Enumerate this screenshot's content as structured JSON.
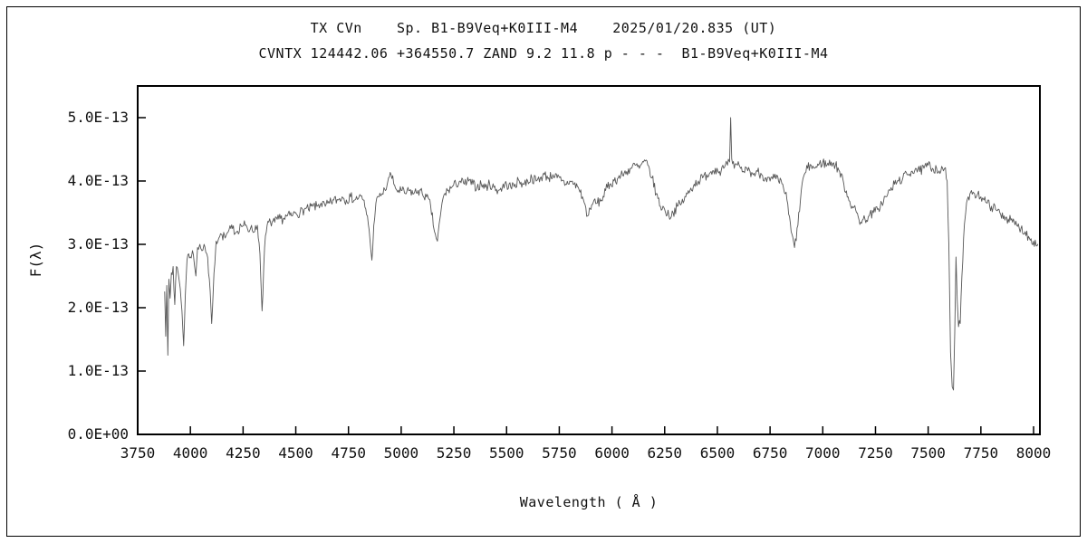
{
  "window": {
    "background": "#ffffff",
    "border_color": "#000000"
  },
  "chart_data": {
    "type": "line",
    "title": "TX CVn    Sp. B1-B9Veq+K0III-M4    2025/01/20.835 (UT)",
    "subtitle": "CVNTX 124442.06 +364550.7 ZAND 9.2 11.8 p - - -  B1-B9Veq+K0III-M4",
    "xlabel": "Wavelength ( Å )",
    "ylabel": "F(λ)",
    "xlim": [
      3750,
      8030
    ],
    "ylim_e13": [
      0,
      5.5
    ],
    "x_ticks": [
      3750,
      4000,
      4250,
      4500,
      4750,
      5000,
      5250,
      5500,
      5750,
      6000,
      6250,
      6500,
      6750,
      7000,
      7250,
      7500,
      7750,
      8000
    ],
    "y_ticks_e13": [
      0,
      1,
      2,
      3,
      4,
      5
    ],
    "y_tick_labels": [
      "0.0E+00",
      "1.0E-13",
      "2.0E-13",
      "3.0E-13",
      "4.0E-13",
      "5.0E-13"
    ],
    "line_color": "#565656",
    "axis_color": "#000000",
    "noise": {
      "amplitude_e13": 0.08,
      "step_A": 4,
      "seed": 7
    },
    "series": [
      {
        "name": "TX CVn spectrum",
        "points_e13": [
          [
            3878,
            2.25
          ],
          [
            3883,
            1.55
          ],
          [
            3888,
            2.35
          ],
          [
            3893,
            1.25
          ],
          [
            3898,
            2.45
          ],
          [
            3904,
            2.15
          ],
          [
            3910,
            2.55
          ],
          [
            3918,
            2.65
          ],
          [
            3926,
            2.05
          ],
          [
            3934,
            2.65
          ],
          [
            3942,
            2.55
          ],
          [
            3952,
            2.3
          ],
          [
            3960,
            1.95
          ],
          [
            3968,
            1.4
          ],
          [
            3976,
            2.2
          ],
          [
            3984,
            2.75
          ],
          [
            3992,
            2.85
          ],
          [
            4000,
            2.8
          ],
          [
            4010,
            2.9
          ],
          [
            4020,
            2.65
          ],
          [
            4026,
            2.5
          ],
          [
            4034,
            2.95
          ],
          [
            4045,
            3.0
          ],
          [
            4055,
            2.9
          ],
          [
            4065,
            3.0
          ],
          [
            4078,
            2.85
          ],
          [
            4090,
            2.45
          ],
          [
            4101,
            1.75
          ],
          [
            4112,
            2.55
          ],
          [
            4122,
            3.05
          ],
          [
            4135,
            3.1
          ],
          [
            4150,
            3.15
          ],
          [
            4165,
            3.1
          ],
          [
            4180,
            3.2
          ],
          [
            4200,
            3.25
          ],
          [
            4220,
            3.2
          ],
          [
            4240,
            3.3
          ],
          [
            4260,
            3.3
          ],
          [
            4275,
            3.2
          ],
          [
            4290,
            3.3
          ],
          [
            4305,
            3.2
          ],
          [
            4318,
            3.3
          ],
          [
            4330,
            2.85
          ],
          [
            4340,
            1.95
          ],
          [
            4352,
            2.95
          ],
          [
            4364,
            3.3
          ],
          [
            4380,
            3.35
          ],
          [
            4400,
            3.35
          ],
          [
            4420,
            3.4
          ],
          [
            4440,
            3.4
          ],
          [
            4460,
            3.45
          ],
          [
            4480,
            3.45
          ],
          [
            4500,
            3.5
          ],
          [
            4520,
            3.5
          ],
          [
            4540,
            3.55
          ],
          [
            4560,
            3.55
          ],
          [
            4580,
            3.6
          ],
          [
            4600,
            3.6
          ],
          [
            4620,
            3.65
          ],
          [
            4640,
            3.6
          ],
          [
            4660,
            3.65
          ],
          [
            4680,
            3.7
          ],
          [
            4700,
            3.7
          ],
          [
            4720,
            3.75
          ],
          [
            4740,
            3.7
          ],
          [
            4760,
            3.75
          ],
          [
            4780,
            3.7
          ],
          [
            4800,
            3.75
          ],
          [
            4820,
            3.7
          ],
          [
            4840,
            3.45
          ],
          [
            4855,
            2.95
          ],
          [
            4861,
            2.75
          ],
          [
            4870,
            3.3
          ],
          [
            4880,
            3.65
          ],
          [
            4895,
            3.75
          ],
          [
            4910,
            3.8
          ],
          [
            4925,
            3.85
          ],
          [
            4940,
            4.05
          ],
          [
            4952,
            4.1
          ],
          [
            4965,
            3.95
          ],
          [
            4980,
            3.85
          ],
          [
            5000,
            3.85
          ],
          [
            5020,
            3.8
          ],
          [
            5040,
            3.85
          ],
          [
            5060,
            3.8
          ],
          [
            5080,
            3.85
          ],
          [
            5100,
            3.8
          ],
          [
            5120,
            3.75
          ],
          [
            5140,
            3.6
          ],
          [
            5158,
            3.2
          ],
          [
            5172,
            3.05
          ],
          [
            5186,
            3.45
          ],
          [
            5200,
            3.75
          ],
          [
            5220,
            3.85
          ],
          [
            5240,
            3.9
          ],
          [
            5260,
            3.95
          ],
          [
            5280,
            4.0
          ],
          [
            5300,
            3.95
          ],
          [
            5320,
            4.0
          ],
          [
            5340,
            3.95
          ],
          [
            5360,
            3.9
          ],
          [
            5380,
            3.95
          ],
          [
            5400,
            3.9
          ],
          [
            5420,
            3.95
          ],
          [
            5440,
            3.9
          ],
          [
            5460,
            3.85
          ],
          [
            5480,
            3.9
          ],
          [
            5500,
            3.95
          ],
          [
            5520,
            3.9
          ],
          [
            5540,
            3.95
          ],
          [
            5560,
            4.0
          ],
          [
            5580,
            3.95
          ],
          [
            5600,
            4.0
          ],
          [
            5620,
            4.05
          ],
          [
            5640,
            4.0
          ],
          [
            5660,
            4.05
          ],
          [
            5680,
            4.1
          ],
          [
            5700,
            4.05
          ],
          [
            5720,
            4.1
          ],
          [
            5740,
            4.05
          ],
          [
            5760,
            4.0
          ],
          [
            5780,
            3.95
          ],
          [
            5800,
            4.0
          ],
          [
            5820,
            3.95
          ],
          [
            5840,
            3.9
          ],
          [
            5860,
            3.75
          ],
          [
            5885,
            3.45
          ],
          [
            5900,
            3.55
          ],
          [
            5915,
            3.7
          ],
          [
            5930,
            3.65
          ],
          [
            5950,
            3.7
          ],
          [
            5970,
            3.85
          ],
          [
            5990,
            3.95
          ],
          [
            6010,
            4.0
          ],
          [
            6030,
            4.05
          ],
          [
            6050,
            4.1
          ],
          [
            6070,
            4.15
          ],
          [
            6090,
            4.2
          ],
          [
            6110,
            4.25
          ],
          [
            6130,
            4.2
          ],
          [
            6150,
            4.3
          ],
          [
            6170,
            4.25
          ],
          [
            6190,
            4.05
          ],
          [
            6210,
            3.8
          ],
          [
            6230,
            3.6
          ],
          [
            6250,
            3.55
          ],
          [
            6270,
            3.45
          ],
          [
            6290,
            3.5
          ],
          [
            6310,
            3.6
          ],
          [
            6330,
            3.65
          ],
          [
            6350,
            3.75
          ],
          [
            6370,
            3.85
          ],
          [
            6390,
            3.95
          ],
          [
            6410,
            4.0
          ],
          [
            6430,
            4.05
          ],
          [
            6450,
            4.1
          ],
          [
            6470,
            4.15
          ],
          [
            6490,
            4.2
          ],
          [
            6510,
            4.15
          ],
          [
            6530,
            4.2
          ],
          [
            6548,
            4.25
          ],
          [
            6558,
            4.3
          ],
          [
            6563,
            5.0
          ],
          [
            6568,
            4.35
          ],
          [
            6580,
            4.2
          ],
          [
            6595,
            4.25
          ],
          [
            6610,
            4.2
          ],
          [
            6625,
            4.15
          ],
          [
            6640,
            4.2
          ],
          [
            6655,
            4.15
          ],
          [
            6670,
            4.1
          ],
          [
            6690,
            4.15
          ],
          [
            6710,
            4.1
          ],
          [
            6730,
            4.05
          ],
          [
            6750,
            4.0
          ],
          [
            6770,
            4.05
          ],
          [
            6790,
            4.0
          ],
          [
            6810,
            3.95
          ],
          [
            6830,
            3.7
          ],
          [
            6850,
            3.2
          ],
          [
            6866,
            2.95
          ],
          [
            6882,
            3.3
          ],
          [
            6898,
            3.85
          ],
          [
            6912,
            4.1
          ],
          [
            6928,
            4.2
          ],
          [
            6945,
            4.25
          ],
          [
            6960,
            4.2
          ],
          [
            6980,
            4.25
          ],
          [
            7000,
            4.3
          ],
          [
            7020,
            4.25
          ],
          [
            7040,
            4.3
          ],
          [
            7060,
            4.25
          ],
          [
            7080,
            4.15
          ],
          [
            7100,
            3.95
          ],
          [
            7120,
            3.75
          ],
          [
            7140,
            3.6
          ],
          [
            7160,
            3.5
          ],
          [
            7180,
            3.35
          ],
          [
            7200,
            3.4
          ],
          [
            7220,
            3.45
          ],
          [
            7240,
            3.5
          ],
          [
            7260,
            3.55
          ],
          [
            7280,
            3.65
          ],
          [
            7300,
            3.75
          ],
          [
            7320,
            3.85
          ],
          [
            7340,
            3.95
          ],
          [
            7360,
            4.0
          ],
          [
            7380,
            4.05
          ],
          [
            7400,
            4.1
          ],
          [
            7420,
            4.15
          ],
          [
            7440,
            4.2
          ],
          [
            7460,
            4.15
          ],
          [
            7480,
            4.2
          ],
          [
            7500,
            4.25
          ],
          [
            7520,
            4.2
          ],
          [
            7540,
            4.2
          ],
          [
            7560,
            4.15
          ],
          [
            7578,
            4.2
          ],
          [
            7590,
            4.0
          ],
          [
            7598,
            3.0
          ],
          [
            7606,
            1.3
          ],
          [
            7614,
            0.75
          ],
          [
            7620,
            0.7
          ],
          [
            7626,
            1.6
          ],
          [
            7632,
            2.8
          ],
          [
            7638,
            2.1
          ],
          [
            7644,
            1.7
          ],
          [
            7652,
            1.75
          ],
          [
            7660,
            2.5
          ],
          [
            7668,
            3.1
          ],
          [
            7678,
            3.5
          ],
          [
            7690,
            3.75
          ],
          [
            7705,
            3.85
          ],
          [
            7720,
            3.8
          ],
          [
            7735,
            3.8
          ],
          [
            7750,
            3.75
          ],
          [
            7765,
            3.7
          ],
          [
            7780,
            3.65
          ],
          [
            7800,
            3.6
          ],
          [
            7820,
            3.55
          ],
          [
            7840,
            3.5
          ],
          [
            7860,
            3.45
          ],
          [
            7880,
            3.4
          ],
          [
            7900,
            3.35
          ],
          [
            7920,
            3.3
          ],
          [
            7940,
            3.25
          ],
          [
            7960,
            3.2
          ],
          [
            7980,
            3.1
          ],
          [
            8000,
            3.05
          ],
          [
            8020,
            3.0
          ]
        ]
      }
    ]
  }
}
